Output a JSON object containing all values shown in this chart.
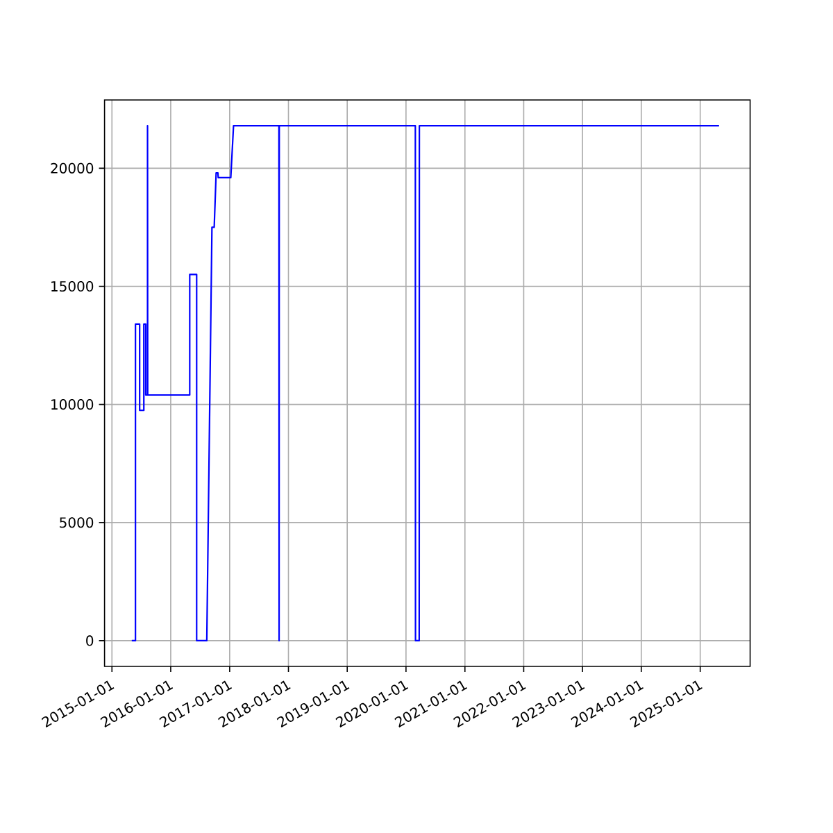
{
  "chart_data": {
    "type": "line",
    "x": [
      "2015-05-04",
      "2015-05-27",
      "2015-05-27",
      "2015-06-22",
      "2015-06-22",
      "2015-07-18",
      "2015-07-18",
      "2015-07-30",
      "2015-07-30",
      "2015-08-10",
      "2015-08-10",
      "2015-08-11",
      "2016-04-28",
      "2016-04-28",
      "2016-06-10",
      "2016-06-10",
      "2016-08-12",
      "2016-09-13",
      "2016-09-27",
      "2016-10-09",
      "2016-10-20",
      "2016-10-22",
      "2017-01-08",
      "2017-01-25",
      "2017-11-03",
      "2017-11-04",
      "2017-11-05",
      "2020-02-28",
      "2020-02-29",
      "2020-03-23",
      "2020-03-24",
      "2025-04-28"
    ],
    "series": [
      {
        "color": "#0000ff",
        "values": [
          0,
          0,
          13400,
          13400,
          9750,
          9750,
          13400,
          13400,
          10400,
          10400,
          21800,
          10400,
          10400,
          15500,
          15500,
          0,
          0,
          17500,
          17500,
          19800,
          19800,
          19600,
          19600,
          21800,
          21800,
          0,
          21800,
          21800,
          0,
          0,
          21800,
          21800
        ]
      }
    ],
    "xlim": [
      "2014-11-16",
      "2025-11-07"
    ],
    "xticks": [
      "2015-01-01",
      "2016-01-01",
      "2017-01-01",
      "2018-01-01",
      "2019-01-01",
      "2020-01-01",
      "2021-01-01",
      "2022-01-01",
      "2023-01-01",
      "2024-01-01",
      "2025-01-01"
    ],
    "ylim": [
      -1090,
      22890
    ],
    "yticks": [
      0,
      5000,
      10000,
      15000,
      20000
    ],
    "grid": true,
    "marker": "none",
    "line_style": "solid"
  }
}
